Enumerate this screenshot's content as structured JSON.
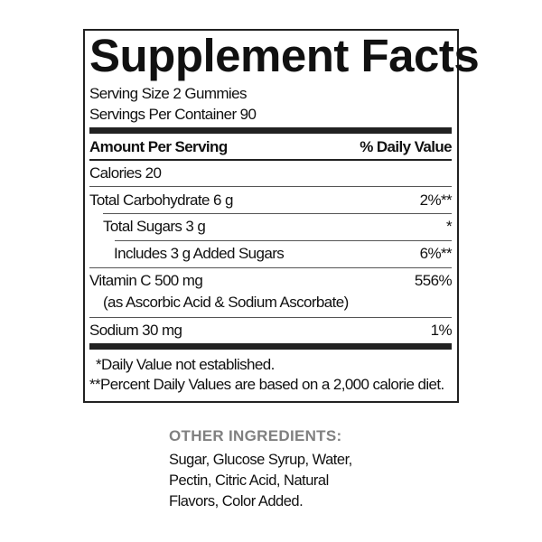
{
  "title": "Supplement Facts",
  "serving_size": "Serving Size 2 Gummies",
  "servings_per_container": "Servings Per Container 90",
  "header": {
    "amount": "Amount Per Serving",
    "dv": "% Daily Value"
  },
  "rows": [
    {
      "label": "Calories 20",
      "dv": ""
    },
    {
      "label": "Total Carbohydrate 6 g",
      "dv": "2%**"
    },
    {
      "label": "Total Sugars 3 g",
      "dv": "*"
    },
    {
      "label": "Includes 3 g Added Sugars",
      "dv": "6%**"
    },
    {
      "label": "Vitamin C 500 mg",
      "sub": "(as Ascorbic Acid & Sodium Ascorbate)",
      "dv": "556%"
    },
    {
      "label": "Sodium 30 mg",
      "dv": "1%"
    }
  ],
  "footnotes": [
    "*Daily Value not established.",
    "**Percent Daily Values are based on a 2,000 calorie diet."
  ],
  "other_ingredients": {
    "heading": "OTHER INGREDIENTS:",
    "lines": [
      "Sugar, Glucose Syrup, Water,",
      "Pectin, Citric Acid, Natural",
      "Flavors, Color Added."
    ]
  }
}
